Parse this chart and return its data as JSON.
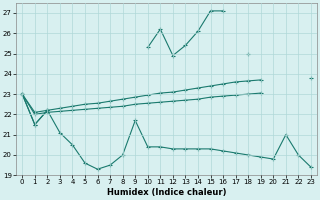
{
  "xlabel": "Humidex (Indice chaleur)",
  "color": "#1a7a6e",
  "background": "#d8f0f0",
  "grid_color": "#b0d8d8",
  "ylim": [
    19,
    27.5
  ],
  "xlim": [
    -0.5,
    23.5
  ],
  "yticks": [
    19,
    20,
    21,
    22,
    23,
    24,
    25,
    26,
    27
  ],
  "xticks": [
    0,
    1,
    2,
    3,
    4,
    5,
    6,
    7,
    8,
    9,
    10,
    11,
    12,
    13,
    14,
    15,
    16,
    17,
    18,
    19,
    20,
    21,
    22,
    23
  ],
  "y_max": [
    23.0,
    21.5,
    22.2,
    null,
    null,
    null,
    null,
    null,
    null,
    null,
    25.3,
    26.2,
    24.9,
    25.4,
    26.1,
    27.1,
    27.1,
    null,
    25.0,
    null,
    null,
    null,
    null,
    23.8
  ],
  "y_upper": [
    23.0,
    22.1,
    22.2,
    22.3,
    22.4,
    22.5,
    22.55,
    22.65,
    22.75,
    22.85,
    22.95,
    23.05,
    23.1,
    23.2,
    23.3,
    23.4,
    23.5,
    23.6,
    23.65,
    23.7,
    null,
    null,
    null,
    null
  ],
  "y_lower": [
    23.0,
    22.0,
    22.1,
    22.15,
    22.2,
    22.25,
    22.3,
    22.35,
    22.4,
    22.5,
    22.55,
    22.6,
    22.65,
    22.7,
    22.75,
    22.85,
    22.9,
    22.95,
    23.0,
    23.05,
    null,
    null,
    null,
    null
  ],
  "y_min": [
    23.0,
    21.5,
    22.2,
    21.1,
    20.5,
    19.6,
    19.3,
    19.5,
    20.0,
    21.7,
    20.4,
    20.4,
    20.3,
    20.3,
    20.3,
    20.3,
    20.2,
    20.1,
    20.0,
    19.9,
    19.8,
    21.0,
    20.0,
    19.4
  ]
}
